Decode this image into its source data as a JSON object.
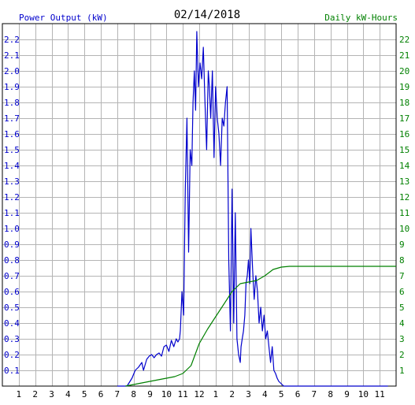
{
  "chart_data": {
    "type": "line",
    "title": "02/14/2018",
    "ylabel_left": "Power Output (kW)",
    "ylabel_right": "Daily kW-Hours",
    "x_tick_labels": [
      "1",
      "2",
      "3",
      "4",
      "5",
      "6",
      "7",
      "8",
      "9",
      "10",
      "11",
      "12",
      "1",
      "2",
      "3",
      "4",
      "5",
      "6",
      "7",
      "8",
      "9",
      "10",
      "11"
    ],
    "xlim_hours": [
      0,
      24
    ],
    "ylim_left": [
      0,
      2.3
    ],
    "y_left_ticks": [
      "0.1",
      "0.2",
      "0.3",
      "0.4",
      "0.5",
      "0.6",
      "0.7",
      "0.8",
      "0.9",
      "1.0",
      "1.1",
      "1.2",
      "1.3",
      "1.4",
      "1.5",
      "1.6",
      "1.7",
      "1.8",
      "1.9",
      "2.0",
      "2.1",
      "2.2"
    ],
    "ylim_right": [
      0,
      23
    ],
    "y_right_ticks": [
      "1",
      "2",
      "3",
      "4",
      "5",
      "6",
      "7",
      "8",
      "9",
      "10",
      "11",
      "12",
      "13",
      "14",
      "15",
      "16",
      "17",
      "18",
      "19",
      "20",
      "21",
      "22"
    ],
    "grid": true,
    "colors": {
      "power": "#0000cc",
      "energy": "#008000",
      "grid": "#b4b4b4",
      "left_axis_text": "#0000cc",
      "right_axis_text": "#008000"
    },
    "series": [
      {
        "name": "Power Output (kW)",
        "axis": "left",
        "x": [
          7.0,
          7.6,
          7.9,
          8.1,
          8.3,
          8.5,
          8.6,
          8.8,
          8.95,
          9.1,
          9.25,
          9.4,
          9.55,
          9.7,
          9.85,
          10.0,
          10.15,
          10.3,
          10.45,
          10.6,
          10.7,
          10.8,
          10.85,
          10.95,
          11.05,
          11.15,
          11.25,
          11.35,
          11.45,
          11.55,
          11.62,
          11.7,
          11.78,
          11.85,
          11.95,
          12.05,
          12.15,
          12.25,
          12.35,
          12.45,
          12.55,
          12.62,
          12.7,
          12.8,
          12.9,
          13.0,
          13.1,
          13.2,
          13.3,
          13.4,
          13.5,
          13.6,
          13.7,
          13.8,
          13.9,
          14.0,
          14.1,
          14.2,
          14.3,
          14.4,
          14.5,
          14.55,
          14.62,
          14.7,
          14.78,
          14.85,
          14.93,
          15.0,
          15.08,
          15.15,
          15.25,
          15.35,
          15.45,
          15.55,
          15.65,
          15.75,
          15.85,
          15.95,
          16.05,
          16.15,
          16.25,
          16.35,
          16.45,
          16.55,
          16.65,
          16.75,
          16.85,
          16.95,
          17.05,
          17.15,
          17.25,
          17.35,
          17.5,
          17.65,
          17.8,
          17.9,
          19.5,
          23.5
        ],
        "values": [
          0.0,
          0.0,
          0.05,
          0.1,
          0.12,
          0.15,
          0.1,
          0.17,
          0.19,
          0.2,
          0.18,
          0.2,
          0.21,
          0.19,
          0.25,
          0.26,
          0.22,
          0.29,
          0.25,
          0.3,
          0.28,
          0.3,
          0.35,
          0.6,
          0.45,
          1.25,
          1.7,
          0.85,
          1.5,
          1.4,
          1.8,
          2.0,
          1.75,
          2.25,
          1.9,
          2.05,
          1.95,
          2.15,
          1.8,
          1.5,
          2.0,
          1.9,
          1.7,
          2.0,
          1.45,
          1.9,
          1.7,
          1.6,
          1.4,
          1.7,
          1.65,
          1.8,
          1.9,
          0.8,
          0.35,
          1.25,
          0.4,
          1.1,
          0.3,
          0.2,
          0.15,
          0.25,
          0.3,
          0.35,
          0.45,
          0.65,
          0.7,
          0.8,
          0.65,
          1.0,
          0.75,
          0.55,
          0.7,
          0.6,
          0.4,
          0.5,
          0.35,
          0.45,
          0.3,
          0.35,
          0.25,
          0.15,
          0.25,
          0.1,
          0.08,
          0.05,
          0.03,
          0.02,
          0.01,
          0.0,
          0.0,
          0.0,
          0.0,
          0.0,
          0.0,
          0.0,
          0.0,
          0.0
        ]
      },
      {
        "name": "Daily kW-Hours",
        "axis": "right",
        "x": [
          7.5,
          8.5,
          9.5,
          10.5,
          11.0,
          11.5,
          12.0,
          12.5,
          13.0,
          13.5,
          14.0,
          14.5,
          15.0,
          15.5,
          16.0,
          16.5,
          17.0,
          17.5,
          18.0,
          19.0,
          20.0,
          22.0,
          24.0
        ],
        "values": [
          0.0,
          0.2,
          0.4,
          0.6,
          0.8,
          1.3,
          2.7,
          3.6,
          4.4,
          5.2,
          6.0,
          6.5,
          6.6,
          6.7,
          7.0,
          7.4,
          7.55,
          7.6,
          7.6,
          7.6,
          7.6,
          7.6,
          7.6
        ]
      }
    ]
  }
}
